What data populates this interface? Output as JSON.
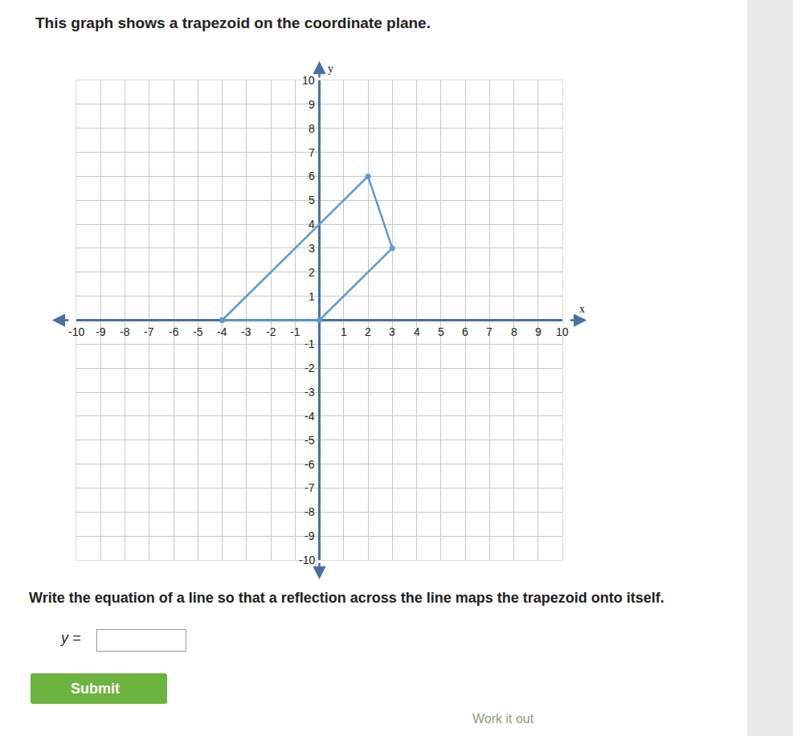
{
  "header": "This graph shows a trapezoid on the coordinate plane.",
  "chart_data": {
    "type": "scatter",
    "x": [
      -4,
      0,
      3,
      2
    ],
    "y": [
      0,
      0,
      3,
      6
    ],
    "color": "#5b9bd5",
    "marker": "circle",
    "line_style": "solid",
    "xlim": [
      -10,
      10
    ],
    "ylim": [
      -10,
      10
    ],
    "xticks": [
      -10,
      -9,
      -8,
      -7,
      -6,
      -5,
      -4,
      -3,
      -2,
      -1,
      1,
      2,
      3,
      4,
      5,
      6,
      7,
      8,
      9,
      10
    ],
    "yticks": [
      -10,
      -9,
      -8,
      -7,
      -6,
      -5,
      -4,
      -3,
      -2,
      -1,
      1,
      2,
      3,
      4,
      5,
      6,
      7,
      8,
      9,
      10
    ],
    "xlabel": "x",
    "ylabel": "y",
    "grid": true
  },
  "question": "Write the equation of a line so that a reflection across the line maps the trapezoid onto itself.",
  "answer_label": "y =",
  "button": "Submit",
  "footer": "Work it out"
}
